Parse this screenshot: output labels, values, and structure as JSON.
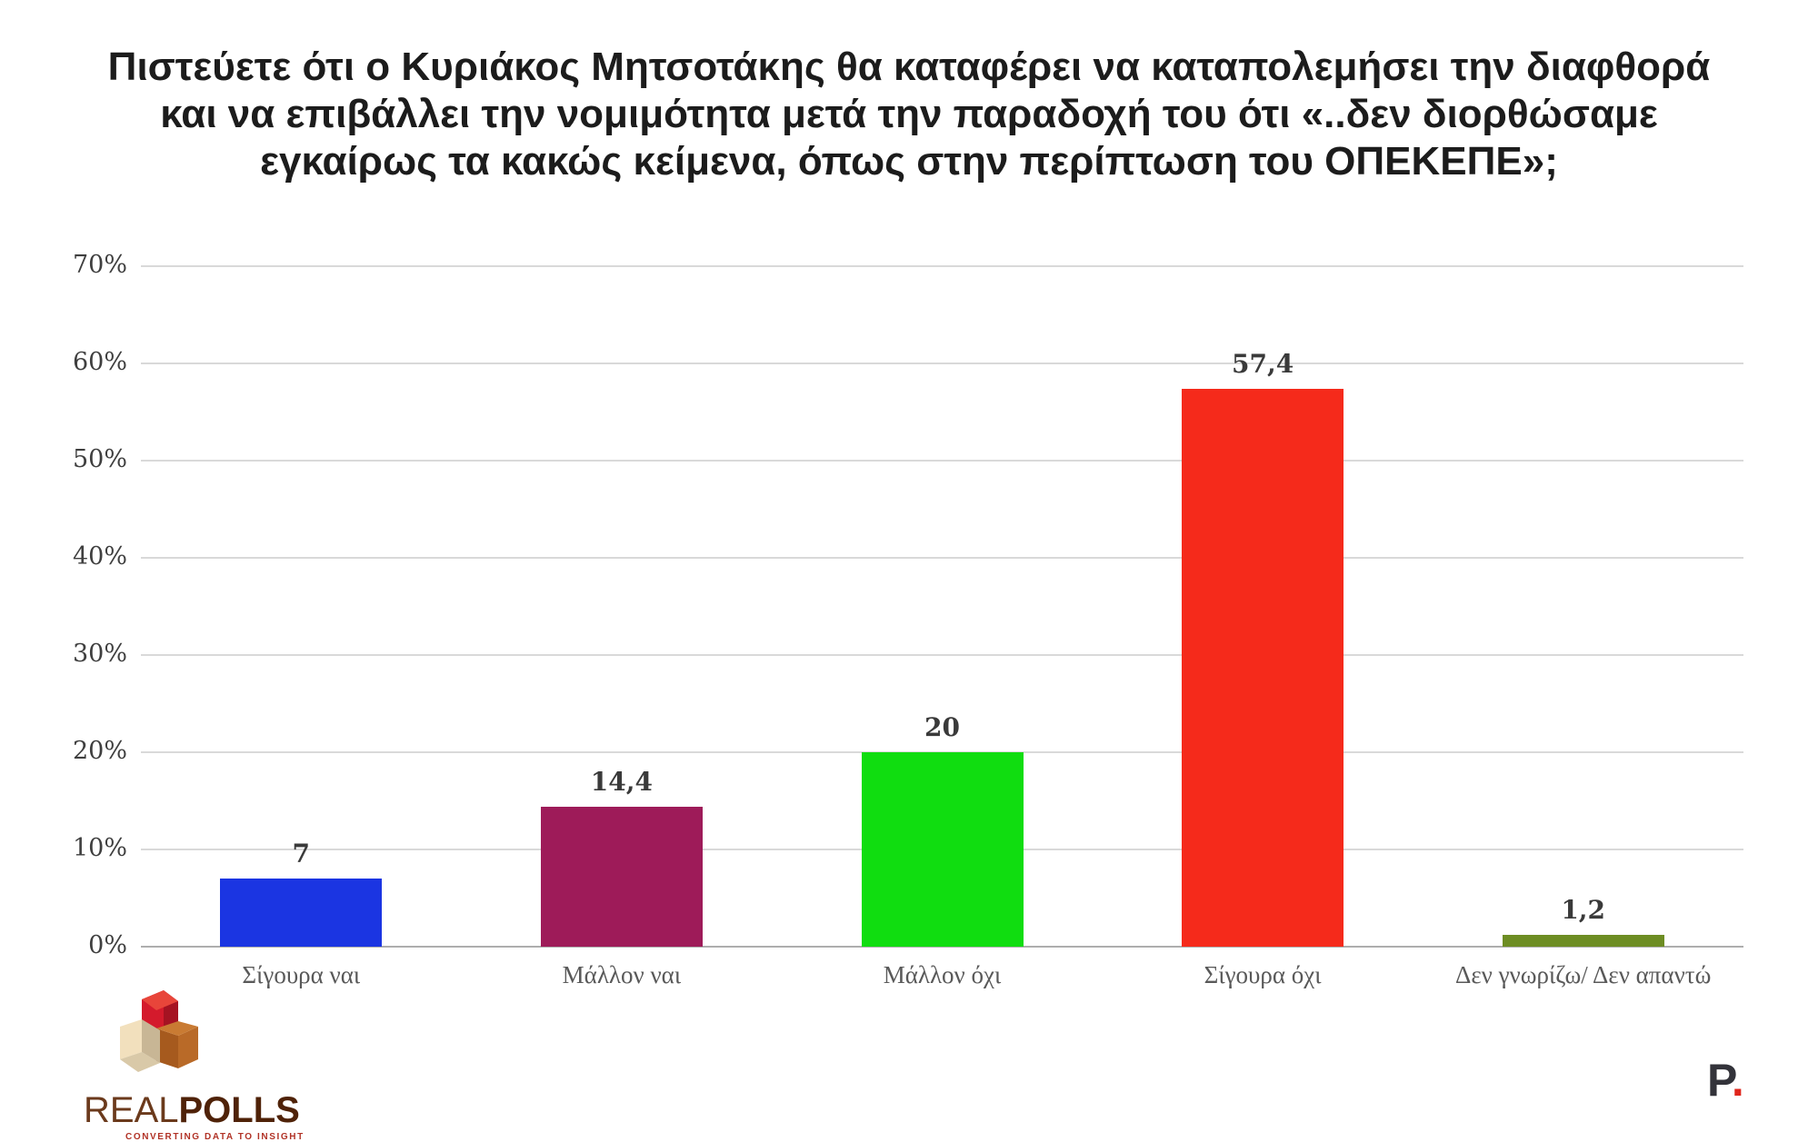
{
  "title": {
    "full": "Πιστεύετε ότι ο Κυριάκος Μητσοτάκης θα καταφέρει να καταπολεμήσει την διαφθορά και να επιβάλλει την νομιμότητα μετά την παραδοχή του ότι «..δεν διορθώσαμε εγκαίρως τα κακώς κείμενα, όπως στην περίπτωση του ΟΠΕΚΕΠΕ»;",
    "line1": "Πιστεύετε ότι ο Κυριάκος Μητσοτάκης θα καταφέρει να καταπολεμήσει την διαφθορά",
    "line2": "και να επιβάλλει την νομιμότητα μετά την παραδοχή του ότι «..δεν διορθώσαμε",
    "line3": "εγκαίρως τα κακώς κείμενα, όπως στην περίπτωση του ΟΠΕΚΕΠΕ»;"
  },
  "chart_data": {
    "type": "bar",
    "title": "Πιστεύετε ότι ο Κυριάκος Μητσοτάκης θα καταφέρει να καταπολεμήσει την διαφθορά και να επιβάλλει την νομιμότητα μετά την παραδοχή του ότι «..δεν διορθώσαμε εγκαίρως τα κακώς κείμενα, όπως στην περίπτωση του ΟΠΕΚΕΠΕ»;",
    "categories": [
      "Σίγουρα ναι",
      "Μάλλον ναι",
      "Μάλλον όχι",
      "Σίγουρα όχι",
      "Δεν γνωρίζω/ Δεν απαντώ"
    ],
    "values": [
      7,
      14.4,
      20,
      57.4,
      1.2
    ],
    "value_labels": [
      "7",
      "14,4",
      "20",
      "57,4",
      "1,2"
    ],
    "bar_colors": [
      "#1b35e2",
      "#9e1b59",
      "#10dd10",
      "#f52a1b",
      "#6d8d23"
    ],
    "xlabel": "",
    "ylabel": "",
    "ylim": [
      0,
      70
    ],
    "yticks": [
      "0%",
      "10%",
      "20%",
      "30%",
      "40%",
      "50%",
      "60%",
      "70%"
    ],
    "ytick_values": [
      0,
      10,
      20,
      30,
      40,
      50,
      60,
      70
    ],
    "grid": true,
    "legend": false,
    "grid_color": "#d9d9d9",
    "baseline_color": "#aeaeae"
  },
  "footer": {
    "realpolls": {
      "name_light": "REAL",
      "name_bold": "POLLS",
      "tagline": "CONVERTING DATA TO INSIGHT"
    },
    "brand_p": {
      "letter": "P",
      "dot": "."
    }
  }
}
